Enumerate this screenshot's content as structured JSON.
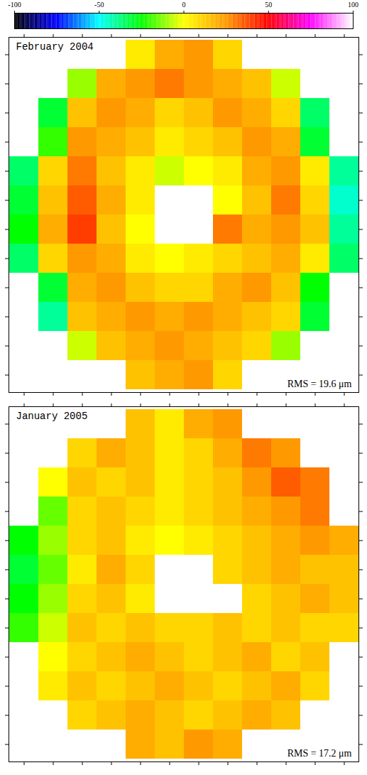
{
  "chart_data": {
    "type": "heatmap",
    "tick_labels": false,
    "colorbar": {
      "range": [
        -100,
        100
      ],
      "ticks": [
        -100,
        -50,
        0,
        50,
        100
      ]
    },
    "panels": [
      {
        "title": "February 2004",
        "annotation": "RMS = 19.6 μm",
        "cells": [
          [
            null,
            null,
            null,
            null,
            5,
            20,
            25,
            10,
            null,
            null,
            null,
            null
          ],
          [
            null,
            null,
            -10,
            20,
            25,
            30,
            25,
            20,
            15,
            -5,
            null,
            null
          ],
          [
            null,
            -30,
            15,
            25,
            20,
            10,
            15,
            25,
            20,
            10,
            -35,
            null
          ],
          [
            null,
            -20,
            25,
            20,
            15,
            5,
            10,
            15,
            25,
            20,
            -30,
            null
          ],
          [
            -35,
            10,
            30,
            15,
            5,
            -5,
            0,
            5,
            20,
            25,
            5,
            -40
          ],
          [
            -30,
            15,
            35,
            20,
            5,
            null,
            null,
            0,
            15,
            30,
            10,
            -45
          ],
          [
            -25,
            20,
            40,
            15,
            0,
            null,
            null,
            30,
            20,
            25,
            15,
            -40
          ],
          [
            -35,
            10,
            25,
            20,
            5,
            0,
            5,
            10,
            15,
            20,
            5,
            -35
          ],
          [
            null,
            -30,
            20,
            25,
            15,
            10,
            10,
            20,
            25,
            15,
            -25,
            null
          ],
          [
            null,
            -40,
            15,
            20,
            25,
            20,
            25,
            20,
            15,
            10,
            -30,
            null
          ],
          [
            null,
            null,
            -5,
            15,
            20,
            25,
            20,
            15,
            10,
            -10,
            null,
            null
          ],
          [
            null,
            null,
            null,
            null,
            15,
            20,
            25,
            10,
            null,
            null,
            null,
            null
          ]
        ]
      },
      {
        "title": "January 2005",
        "annotation": "RMS = 17.2 μm",
        "cells": [
          [
            null,
            null,
            null,
            null,
            15,
            5,
            20,
            25,
            null,
            null,
            null,
            null
          ],
          [
            null,
            null,
            10,
            20,
            15,
            5,
            10,
            20,
            30,
            25,
            null,
            null
          ],
          [
            null,
            0,
            15,
            10,
            15,
            5,
            10,
            15,
            25,
            35,
            30,
            null
          ],
          [
            null,
            -15,
            10,
            15,
            10,
            5,
            10,
            15,
            20,
            25,
            30,
            null
          ],
          [
            -25,
            -10,
            10,
            15,
            5,
            0,
            5,
            10,
            15,
            20,
            25,
            20
          ],
          [
            -30,
            -15,
            5,
            20,
            10,
            null,
            null,
            10,
            15,
            20,
            15,
            15
          ],
          [
            -25,
            -10,
            10,
            15,
            5,
            null,
            null,
            null,
            10,
            15,
            20,
            15
          ],
          [
            -20,
            -5,
            15,
            10,
            15,
            10,
            10,
            15,
            10,
            15,
            10,
            10
          ],
          [
            null,
            0,
            10,
            15,
            20,
            15,
            10,
            15,
            20,
            10,
            15,
            null
          ],
          [
            null,
            5,
            15,
            10,
            15,
            20,
            15,
            10,
            15,
            20,
            10,
            null
          ],
          [
            null,
            null,
            10,
            15,
            20,
            15,
            10,
            15,
            20,
            15,
            null,
            null
          ],
          [
            null,
            null,
            null,
            null,
            20,
            15,
            25,
            20,
            null,
            null,
            null,
            null
          ]
        ]
      }
    ]
  }
}
